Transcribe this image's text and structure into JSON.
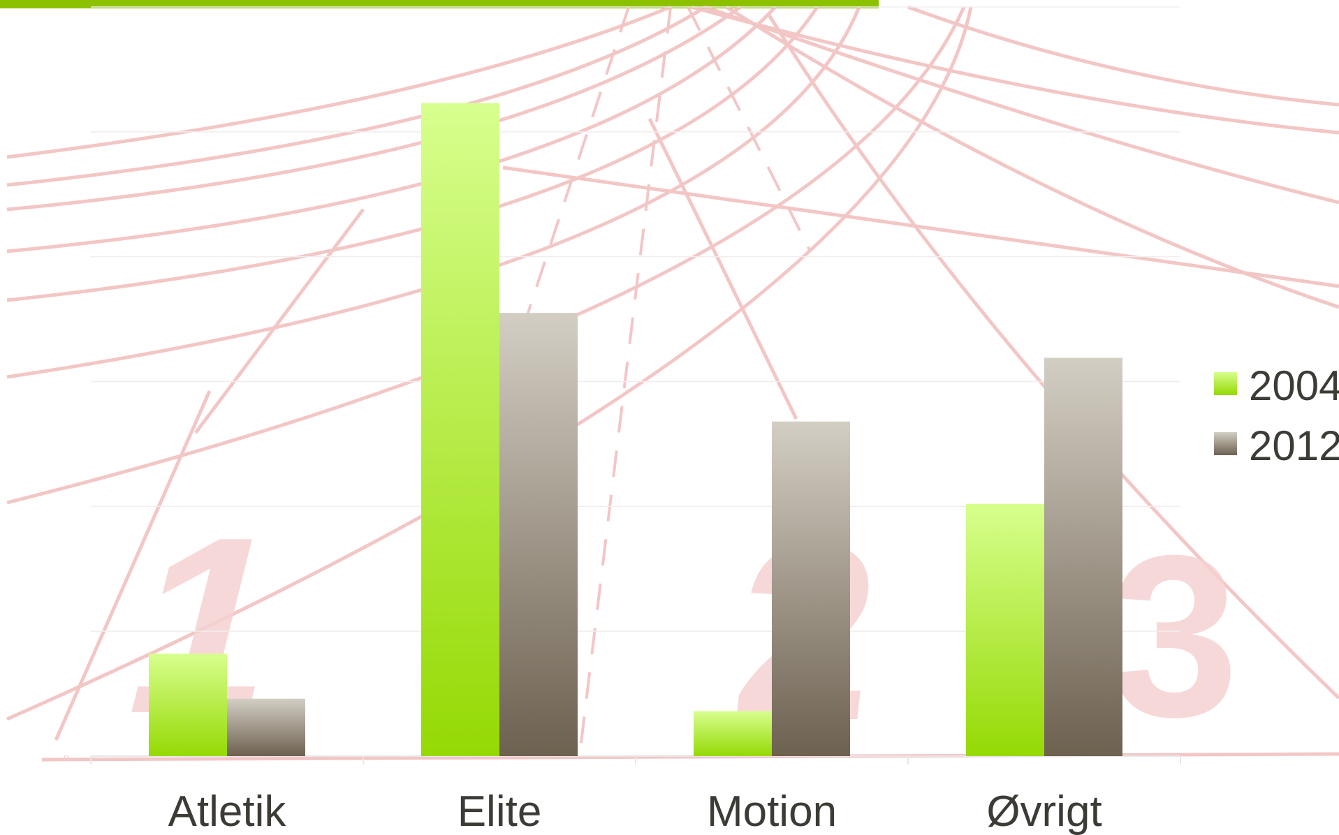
{
  "theme": {
    "bar_accent": "#8cc100",
    "track_line": "#f0b4b4",
    "track_numbers": "#f2c2c2",
    "text": "#3d3b35"
  },
  "background": {
    "lane_numbers": [
      "1",
      "2",
      "3"
    ]
  },
  "chart_data": {
    "type": "bar",
    "title": "",
    "xlabel": "",
    "ylabel": "",
    "categories": [
      "Atletik",
      "Elite",
      "Motion",
      "Øvrigt"
    ],
    "series": [
      {
        "name": "2004",
        "values": [
          0.82,
          5.23,
          0.36,
          2.02
        ],
        "color_top": "#d7ff8e",
        "color_bottom": "#95d904"
      },
      {
        "name": "2012",
        "values": [
          0.46,
          3.55,
          2.68,
          3.19
        ],
        "color_top": "#d3cec4",
        "color_bottom": "#6d6150"
      }
    ],
    "ylim": [
      0,
      6
    ],
    "y_ticks": [
      "0"
    ],
    "grid": true,
    "legend_position": "right"
  }
}
